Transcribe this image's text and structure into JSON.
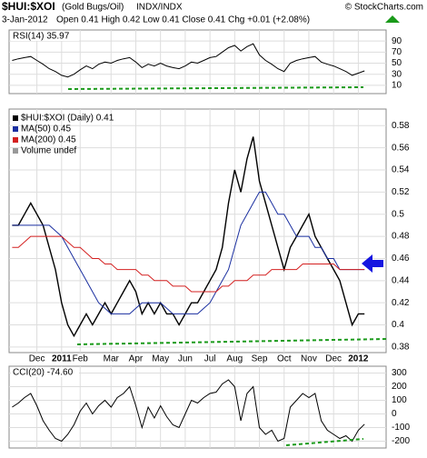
{
  "header": {
    "symbol": "$HUI:$XOI",
    "name": "(Gold Bugs/Oil)",
    "exchange": "INDX/INDX",
    "date": "3-Jan-2012",
    "quote": "Open 0.41  High 0.42  Low 0.41  Close 0.41  Chg +0.01 (+2.08%)",
    "credit": "© StockCharts.com"
  },
  "chart_data": [
    {
      "type": "line",
      "title": "RSI(14) 35.97",
      "ylim": [
        -5,
        110
      ],
      "yticks": [
        10,
        30,
        50,
        70,
        90
      ],
      "grid": true,
      "series": [
        {
          "name": "RSI(14)",
          "color": "#000000",
          "values": [
            55,
            58,
            60,
            62,
            55,
            48,
            40,
            35,
            28,
            25,
            30,
            38,
            45,
            40,
            48,
            52,
            50,
            55,
            58,
            60,
            52,
            42,
            48,
            45,
            50,
            45,
            42,
            40,
            45,
            52,
            50,
            55,
            60,
            62,
            70,
            78,
            82,
            72,
            80,
            85,
            65,
            55,
            48,
            40,
            35,
            50,
            55,
            58,
            60,
            62,
            52,
            48,
            45,
            40,
            35,
            28,
            32,
            36
          ]
        }
      ]
    },
    {
      "type": "line",
      "title": "$HUI:$XOI (Daily) 0.41",
      "ylim": [
        0.375,
        0.595
      ],
      "yticks": [
        0.38,
        0.4,
        0.42,
        0.44,
        0.46,
        0.48,
        0.5,
        0.52,
        0.54,
        0.56,
        0.58
      ],
      "grid": true,
      "categories": [
        null,
        null,
        null,
        null,
        "Dec",
        null,
        null,
        null,
        "2011",
        null,
        null,
        "Feb",
        null,
        null,
        null,
        null,
        "Mar",
        null,
        null,
        null,
        "Apr",
        null,
        null,
        null,
        "May",
        null,
        null,
        null,
        "Jun",
        null,
        null,
        null,
        "Jul",
        null,
        null,
        null,
        "Aug",
        null,
        null,
        null,
        "Sep",
        null,
        null,
        null,
        "Oct",
        null,
        null,
        null,
        "Nov",
        null,
        null,
        null,
        "Dec",
        null,
        null,
        null,
        "2012",
        null
      ],
      "series": [
        {
          "name": "$HUI:$XOI (Daily) 0.41",
          "color": "#000000",
          "values": [
            0.49,
            0.49,
            0.5,
            0.51,
            0.5,
            0.49,
            0.47,
            0.45,
            0.42,
            0.4,
            0.39,
            0.4,
            0.41,
            0.4,
            0.41,
            0.42,
            0.41,
            0.42,
            0.43,
            0.44,
            0.43,
            0.41,
            0.42,
            0.41,
            0.42,
            0.41,
            0.41,
            0.4,
            0.41,
            0.42,
            0.42,
            0.43,
            0.44,
            0.45,
            0.47,
            0.51,
            0.54,
            0.52,
            0.55,
            0.57,
            0.53,
            0.51,
            0.49,
            0.47,
            0.45,
            0.47,
            0.48,
            0.49,
            0.5,
            0.48,
            0.47,
            0.46,
            0.45,
            0.44,
            0.42,
            0.4,
            0.41,
            0.41
          ]
        },
        {
          "name": "MA(50) 0.45",
          "color": "#1a2fa0",
          "values": [
            0.49,
            0.49,
            0.49,
            0.49,
            0.49,
            0.49,
            0.49,
            0.485,
            0.48,
            0.47,
            0.46,
            0.45,
            0.44,
            0.43,
            0.42,
            0.415,
            0.41,
            0.41,
            0.41,
            0.41,
            0.415,
            0.42,
            0.42,
            0.42,
            0.42,
            0.415,
            0.41,
            0.41,
            0.41,
            0.41,
            0.41,
            0.415,
            0.42,
            0.43,
            0.44,
            0.45,
            0.47,
            0.49,
            0.5,
            0.51,
            0.52,
            0.52,
            0.51,
            0.5,
            0.5,
            0.49,
            0.48,
            0.48,
            0.48,
            0.47,
            0.47,
            0.46,
            0.46,
            0.45,
            0.45,
            0.45,
            0.45,
            0.45
          ]
        },
        {
          "name": "MA(200) 0.45",
          "color": "#d42020",
          "values": [
            0.47,
            0.47,
            0.475,
            0.48,
            0.48,
            0.48,
            0.48,
            0.48,
            0.48,
            0.475,
            0.47,
            0.47,
            0.465,
            0.46,
            0.46,
            0.455,
            0.455,
            0.45,
            0.45,
            0.45,
            0.45,
            0.445,
            0.445,
            0.44,
            0.44,
            0.44,
            0.435,
            0.435,
            0.435,
            0.43,
            0.43,
            0.43,
            0.43,
            0.43,
            0.435,
            0.435,
            0.44,
            0.44,
            0.44,
            0.445,
            0.445,
            0.445,
            0.45,
            0.45,
            0.45,
            0.45,
            0.45,
            0.455,
            0.455,
            0.455,
            0.455,
            0.455,
            0.455,
            0.45,
            0.45,
            0.45,
            0.45,
            0.45
          ]
        }
      ],
      "legend_extra": "Volume undef"
    },
    {
      "type": "line",
      "title": "CCI(20) -74.60",
      "ylim": [
        -250,
        350
      ],
      "yticks": [
        -200,
        -100,
        0,
        100,
        200,
        300
      ],
      "grid": true,
      "series": [
        {
          "name": "CCI(20)",
          "color": "#000000",
          "values": [
            50,
            80,
            120,
            150,
            60,
            -50,
            -120,
            -180,
            -200,
            -150,
            -80,
            20,
            80,
            0,
            60,
            100,
            50,
            120,
            150,
            200,
            60,
            -100,
            50,
            -30,
            60,
            -20,
            -80,
            -100,
            0,
            100,
            80,
            120,
            150,
            160,
            220,
            250,
            200,
            -50,
            150,
            200,
            -100,
            -150,
            -120,
            -200,
            -180,
            50,
            100,
            150,
            120,
            150,
            -50,
            -120,
            -150,
            -180,
            -160,
            -200,
            -120,
            -75
          ]
        }
      ]
    }
  ]
}
